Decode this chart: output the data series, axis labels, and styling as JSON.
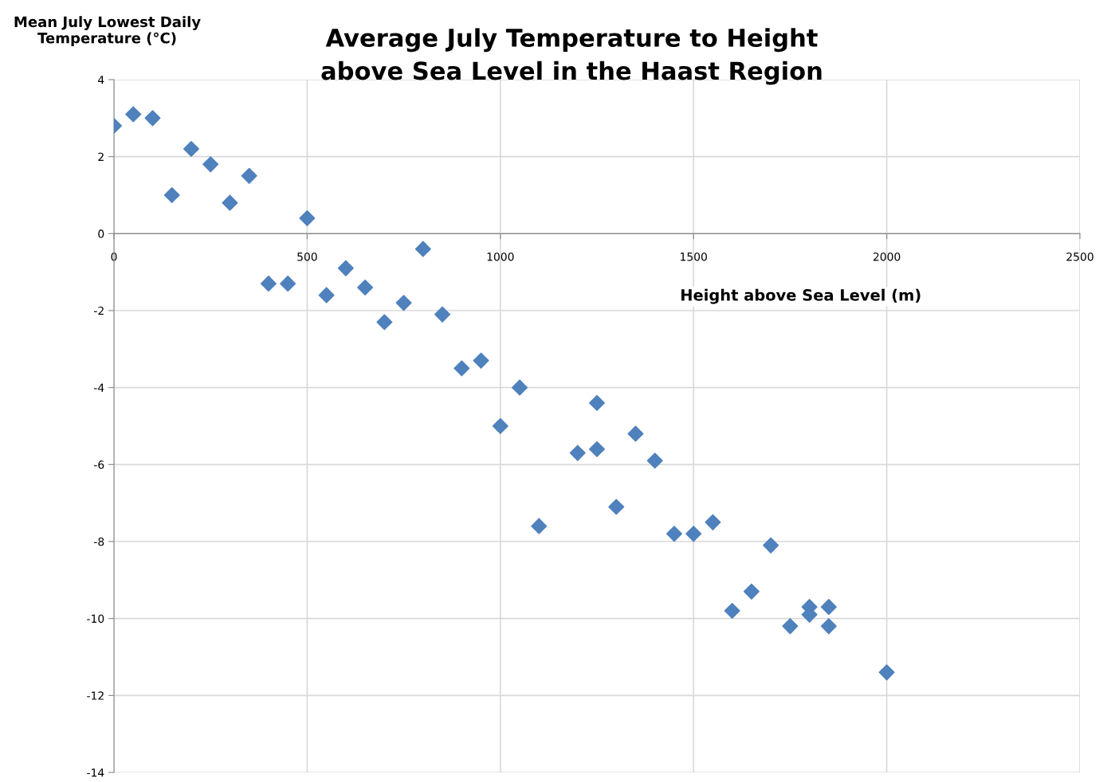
{
  "chart_data": {
    "type": "scatter",
    "title": "Average July Temperature to Height\nabove Sea Level in the Haast Region",
    "xlabel": "Height above Sea Level (m)",
    "ylabel": "Mean July Lowest Daily\nTemperature (°C)",
    "x": [
      0,
      50,
      100,
      150,
      200,
      250,
      300,
      350,
      400,
      450,
      500,
      550,
      600,
      650,
      700,
      750,
      800,
      850,
      900,
      950,
      1000,
      1050,
      1100,
      1200,
      1250,
      1250,
      1300,
      1350,
      1400,
      1450,
      1500,
      1550,
      1600,
      1650,
      1700,
      1750,
      1800,
      1800,
      1850,
      1850,
      2000
    ],
    "series": [
      {
        "color": "#4f81bd",
        "values": [
          2.8,
          3.1,
          3.0,
          1.0,
          2.2,
          1.8,
          0.8,
          1.5,
          -1.3,
          -1.3,
          0.4,
          -1.6,
          -0.9,
          -1.4,
          -2.3,
          -1.8,
          -0.4,
          -2.1,
          -3.5,
          -3.3,
          -5.0,
          -4.0,
          -7.6,
          -5.7,
          -5.6,
          -4.4,
          -7.1,
          -5.2,
          -5.9,
          -7.8,
          -7.8,
          -7.5,
          -9.8,
          -9.3,
          -8.1,
          -10.2,
          -9.7,
          -9.9,
          -9.7,
          -10.2,
          -11.4
        ]
      }
    ],
    "xlim": [
      0,
      2500
    ],
    "xticks": [
      0,
      500,
      1000,
      1500,
      2000,
      2500
    ],
    "ylim": [
      -14,
      4
    ],
    "yticks": [
      -14,
      -12,
      -10,
      -8,
      -6,
      -4,
      -2,
      0,
      2,
      4
    ],
    "grid": true,
    "marker": "diamond"
  }
}
